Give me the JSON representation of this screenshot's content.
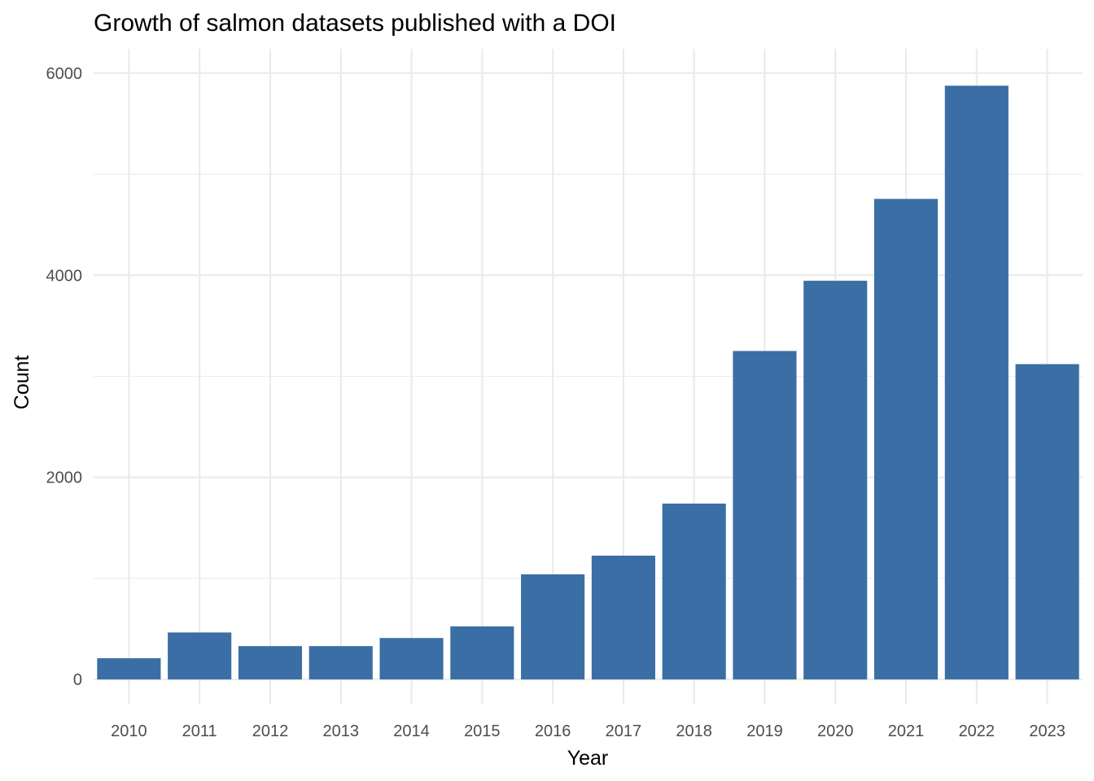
{
  "chart_data": {
    "type": "bar",
    "title": "Growth of salmon datasets published with a DOI",
    "xlabel": "Year",
    "ylabel": "Count",
    "categories": [
      "2010",
      "2011",
      "2012",
      "2013",
      "2014",
      "2015",
      "2016",
      "2017",
      "2018",
      "2019",
      "2020",
      "2021",
      "2022",
      "2023"
    ],
    "values": [
      210,
      465,
      330,
      330,
      410,
      525,
      1040,
      1225,
      1740,
      3250,
      3945,
      4755,
      5875,
      3120
    ],
    "yticks": [
      "0",
      "2000",
      "4000",
      "6000"
    ],
    "ylim": [
      -240,
      6240
    ],
    "grid": true,
    "legend": "none",
    "bar_color": "#3A6EA5"
  }
}
